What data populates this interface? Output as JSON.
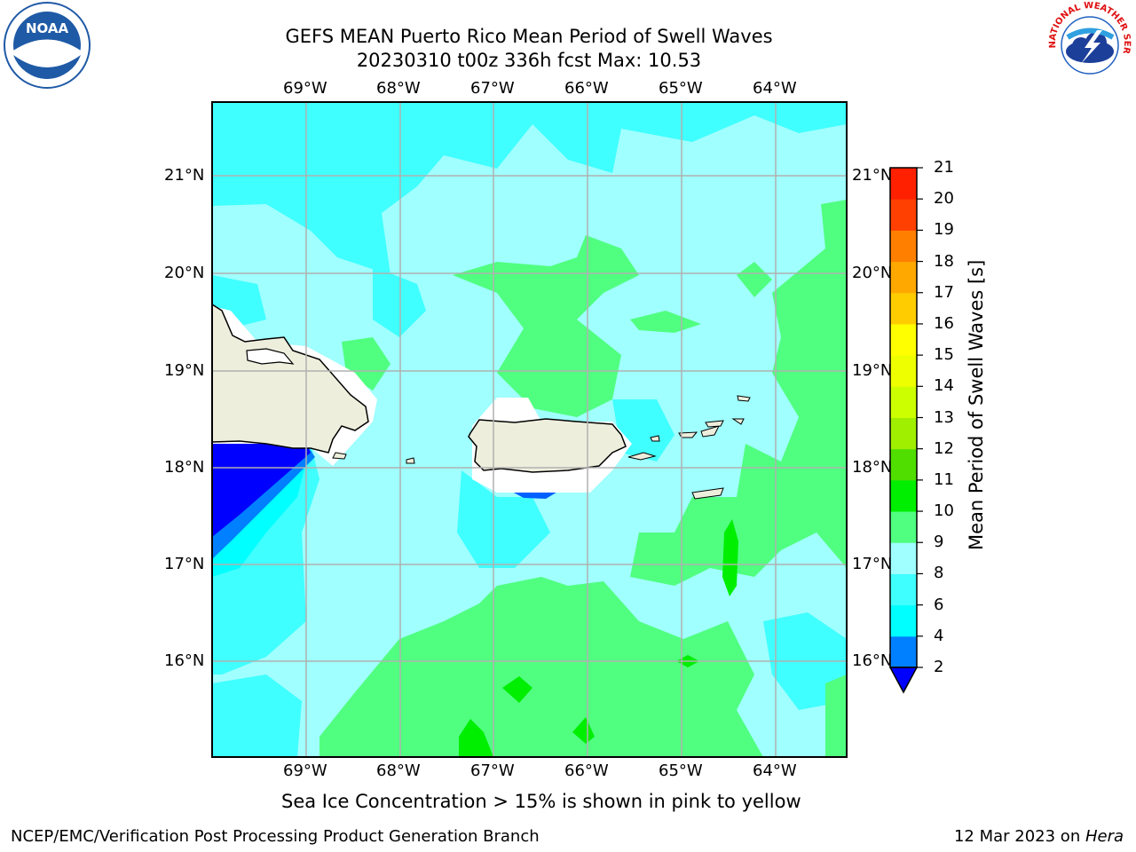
{
  "header": {
    "title_line1": "GEFS MEAN Puerto Rico Mean Period of Swell Waves",
    "title_line2": "20230310 t00z 336h fcst   Max: 10.53"
  },
  "logos": {
    "left": {
      "name": "noaa-logo",
      "text": "NOAA"
    },
    "right": {
      "name": "nws-logo",
      "text": "NATIONAL WEATHER SERVICE"
    }
  },
  "map": {
    "lon_ticks": [
      "69°W",
      "68°W",
      "67°W",
      "66°W",
      "65°W",
      "64°W"
    ],
    "lat_ticks": [
      "21°N",
      "20°N",
      "19°N",
      "18°N",
      "17°N",
      "16°N"
    ],
    "lon_range": [
      -70,
      -63.3
    ],
    "lat_range": [
      15.0,
      21.75
    ],
    "land_color": "#eeeedd",
    "grid": true
  },
  "colorbar": {
    "title": "Mean Period of Swell Waves [s]",
    "levels": [
      "2",
      "4",
      "6",
      "8",
      "9",
      "10",
      "11",
      "12",
      "13",
      "14",
      "15",
      "16",
      "17",
      "18",
      "19",
      "20",
      "21"
    ],
    "colors": [
      "#0000ff",
      "#0080ff",
      "#00ffff",
      "#40ffff",
      "#a0ffff",
      "#50ff80",
      "#00ee00",
      "#50dd00",
      "#a0ee00",
      "#ccff00",
      "#eeff00",
      "#ffff00",
      "#ffcc00",
      "#ffa800",
      "#ff7f00",
      "#ff4000",
      "#ff2000",
      "#ff0000"
    ],
    "extend_min_color": "#0000ff"
  },
  "note": "Sea Ice Concentration > 15% is shown in pink to yellow",
  "footer": {
    "left": "NCEP/EMC/Verification Post Processing Product Generation Branch",
    "date": "12 Mar 2023 on ",
    "machine": "Hera"
  }
}
